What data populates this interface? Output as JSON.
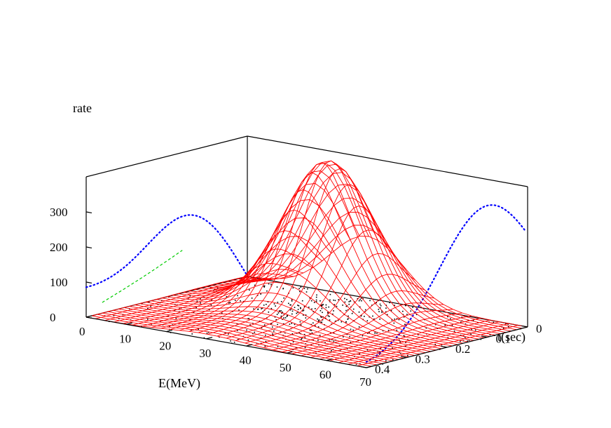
{
  "chart_data": {
    "type": "surface3d",
    "zlabel": "rate",
    "xlabel": "E(MeV)",
    "ylabel": "t(sec)",
    "xlim": [
      0,
      70
    ],
    "ylim": [
      0,
      0.4
    ],
    "zlim": [
      0,
      400
    ],
    "x_ticks": [
      "0",
      "10",
      "20",
      "30",
      "40",
      "50",
      "60",
      "70"
    ],
    "y_ticks": [
      "0",
      "0.1",
      "0.2",
      "0.3",
      "0.4"
    ],
    "z_ticks": [
      "0",
      "100",
      "200",
      "300"
    ],
    "peak": {
      "E": 30,
      "t": 0.1,
      "rate": 375
    },
    "projections": {
      "rate_vs_E": {
        "color": "#0000ff",
        "style": "dotted",
        "peak_E": 28,
        "peak_rate": 300
      },
      "rate_vs_t": {
        "color": "#0000ff",
        "style": "dotted",
        "peak_t": 0.1,
        "peak_rate": 375
      }
    },
    "scatter_floor": {
      "color": "#000000",
      "plane": "rate=0"
    },
    "surface_color": "#ff0000",
    "contour_color": "#00cc00",
    "grid": false
  }
}
